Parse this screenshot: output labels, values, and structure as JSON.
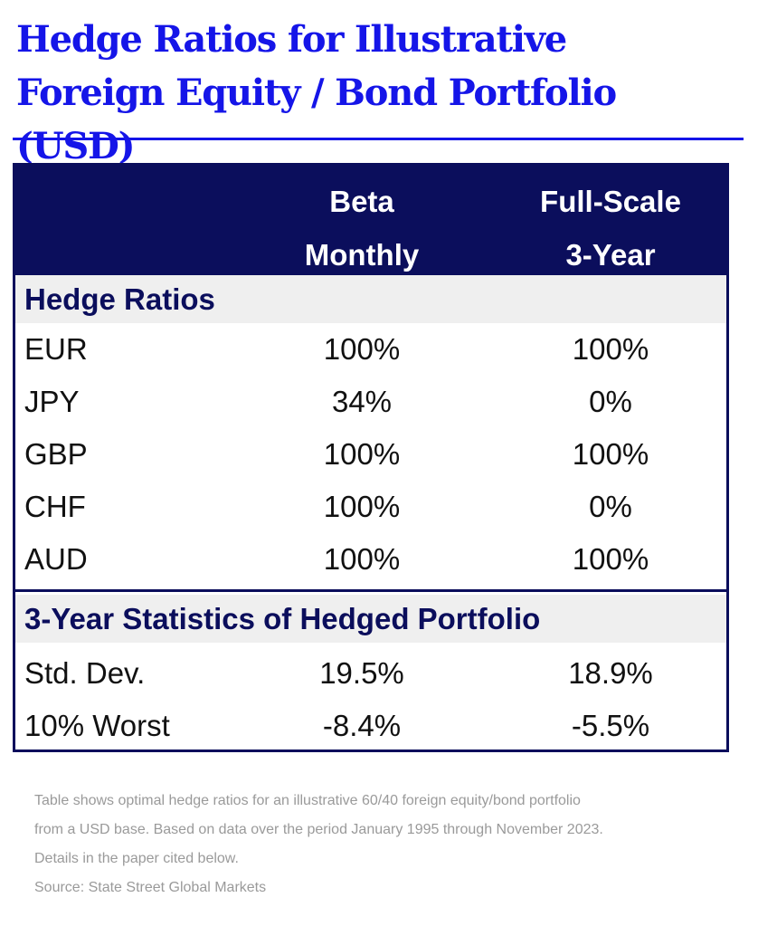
{
  "title": {
    "line1": "Hedge Ratios for Illustrative",
    "line2": "Foreign Equity / Bond Portfolio (USD)"
  },
  "table": {
    "headers": {
      "col1": [
        "Beta",
        "Monthly"
      ],
      "col2": [
        "Full-Scale",
        "3-Year"
      ]
    },
    "sections": [
      {
        "label": "Hedge Ratios",
        "rows": [
          {
            "name": "EUR",
            "v1": "100%",
            "v2": "100%"
          },
          {
            "name": "JPY",
            "v1": "34%",
            "v2": "0%"
          },
          {
            "name": "GBP",
            "v1": "100%",
            "v2": "100%"
          },
          {
            "name": "CHF",
            "v1": "100%",
            "v2": "0%"
          },
          {
            "name": "AUD",
            "v1": "100%",
            "v2": "100%"
          }
        ]
      },
      {
        "label": "3-Year Statistics of Hedged Portfolio",
        "rows": [
          {
            "name": "Std. Dev.",
            "v1": "19.5%",
            "v2": "18.9%"
          },
          {
            "name": "10% Worst",
            "v1": "-8.4%",
            "v2": "-5.5%"
          }
        ]
      }
    ]
  },
  "notes": {
    "lines": [
      "Table shows optimal hedge ratios for an illustrative 60/40 foreign equity/bond portfolio",
      "from a USD base. Based on data over the period January 1995 through November 2023.",
      "Details in the paper cited below.",
      "Source: State Street Global Markets"
    ]
  },
  "colors": {
    "title": "#1515e8",
    "table_header_bg": "#0b0e5c",
    "section_bg": "#efefef",
    "note_text": "#9a9a9a"
  }
}
